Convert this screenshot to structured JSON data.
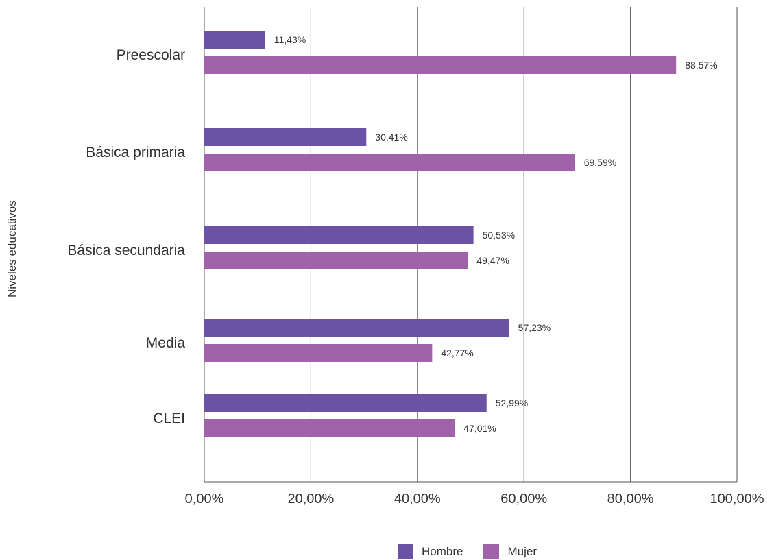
{
  "chart_data": {
    "type": "bar",
    "orientation": "horizontal",
    "ylabel": "Niveles educativos",
    "xlabel": "",
    "xlim": [
      0,
      100
    ],
    "x_ticks": [
      "0,00%",
      "20,00%",
      "40,00%",
      "60,00%",
      "80,00%",
      "100,00%"
    ],
    "categories": [
      "Preescolar",
      "Básica primaria",
      "Básica secundaria",
      "Media",
      "CLEI"
    ],
    "series": [
      {
        "name": "Hombre",
        "color": "#6b52a5",
        "values": [
          11.43,
          30.41,
          50.53,
          57.23,
          52.99
        ],
        "labels": [
          "11,43%",
          "30,41%",
          "50,53%",
          "57,23%",
          "52,99%"
        ]
      },
      {
        "name": "Mujer",
        "color": "#a062a8",
        "values": [
          88.57,
          69.59,
          49.47,
          42.77,
          47.01
        ],
        "labels": [
          "88,57%",
          "69,59%",
          "49,47%",
          "42,77%",
          "47,01%"
        ]
      }
    ],
    "grid": "vertical",
    "legend_position": "bottom"
  }
}
